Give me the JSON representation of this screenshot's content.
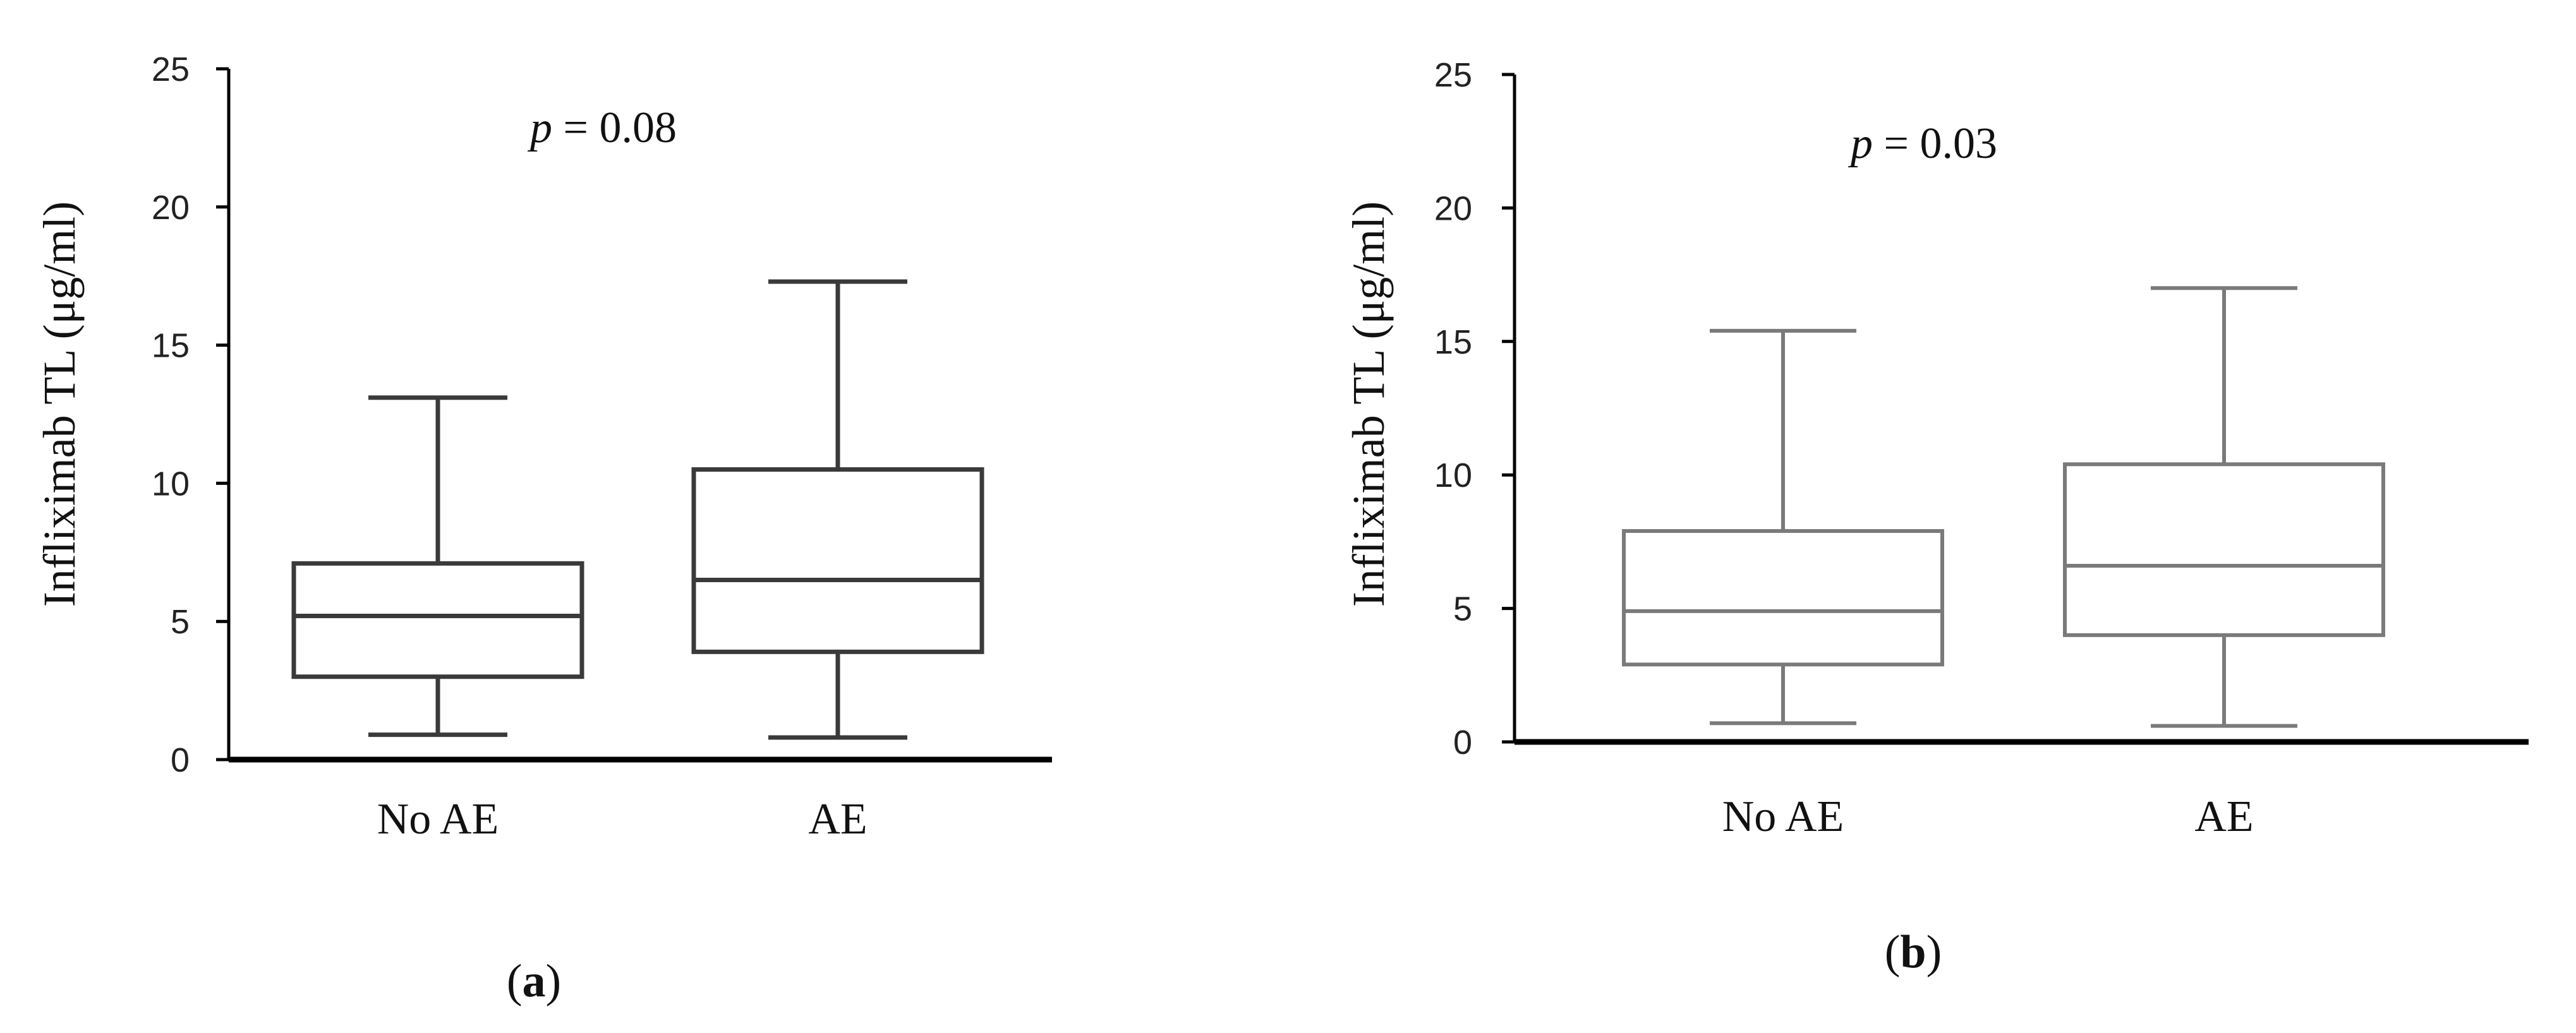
{
  "chart_data": [
    {
      "type": "box",
      "panel_label": "a",
      "ylabel": "Infliximab TL (μg/ml)",
      "ylim": [
        0,
        25
      ],
      "yticks": [
        0,
        5,
        10,
        15,
        20,
        25
      ],
      "categories": [
        "No AE",
        "AE"
      ],
      "boxes": [
        {
          "category": "No AE",
          "min": 0.9,
          "q1": 3.0,
          "median": 5.2,
          "q3": 7.1,
          "max": 13.1
        },
        {
          "category": "AE",
          "min": 0.8,
          "q1": 3.9,
          "median": 6.5,
          "q3": 10.5,
          "max": 17.3
        }
      ],
      "annotation": {
        "p_symbol": "p",
        "text": " = 0.08"
      }
    },
    {
      "type": "box",
      "panel_label": "b",
      "ylabel": "Infliximab TL (μg/ml)",
      "ylim": [
        0,
        25
      ],
      "yticks": [
        0,
        5,
        10,
        15,
        20,
        25
      ],
      "categories": [
        "No AE",
        "AE"
      ],
      "boxes": [
        {
          "category": "No AE",
          "min": 0.7,
          "q1": 2.9,
          "median": 4.9,
          "q3": 7.9,
          "max": 15.4
        },
        {
          "category": "AE",
          "min": 0.6,
          "q1": 4.0,
          "median": 6.6,
          "q3": 10.4,
          "max": 17.0
        }
      ],
      "annotation": {
        "p_symbol": "p",
        "text": " = 0.03"
      }
    }
  ],
  "colors": {
    "axis": "#000000",
    "box_a": "#3a3a3a",
    "box_b": "#7a7a7a",
    "text": "#111111"
  }
}
